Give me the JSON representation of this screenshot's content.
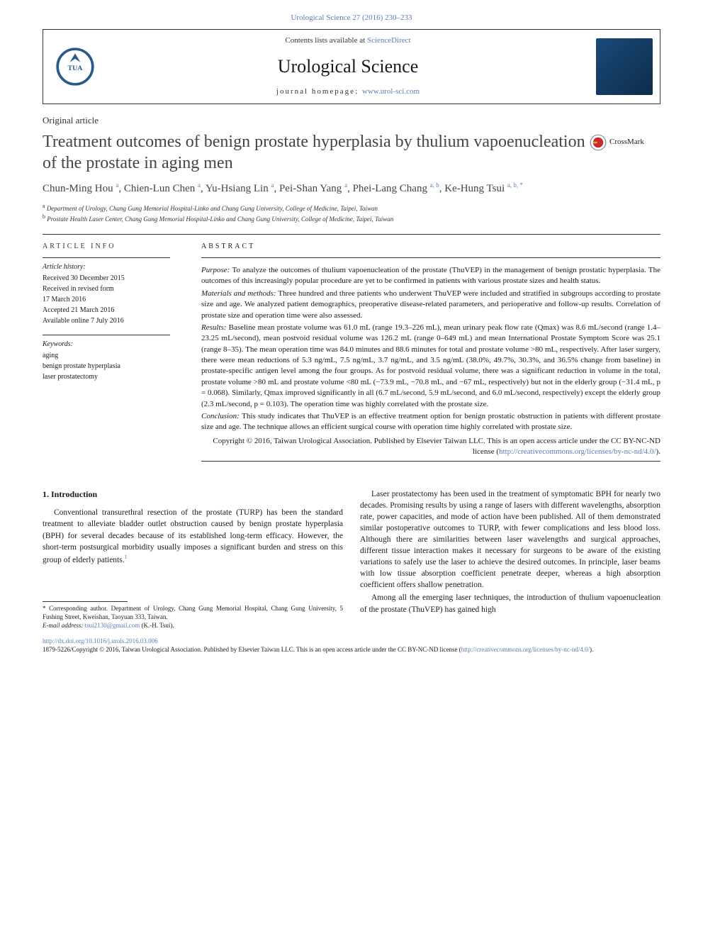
{
  "citation": "Urological Science 27 (2016) 230–233",
  "header": {
    "contents_prefix": "Contents lists available at ",
    "contents_link": "ScienceDirect",
    "journal_name": "Urological Science",
    "homepage_label": "journal homepage: ",
    "homepage_url": "www.urol-sci.com"
  },
  "article_type": "Original article",
  "title": "Treatment outcomes of benign prostate hyperplasia by thulium vapoenucleation of the prostate in aging men",
  "crossmark_label": "CrossMark",
  "authors": [
    {
      "name": "Chun-Ming Hou",
      "sup": "a"
    },
    {
      "name": "Chien-Lun Chen",
      "sup": "a"
    },
    {
      "name": "Yu-Hsiang Lin",
      "sup": "a"
    },
    {
      "name": "Pei-Shan Yang",
      "sup": "a"
    },
    {
      "name": "Phei-Lang Chang",
      "sup": "a, b"
    },
    {
      "name": "Ke-Hung Tsui",
      "sup": "a, b, *"
    }
  ],
  "affiliations": [
    {
      "sup": "a",
      "text": "Department of Urology, Chang Gung Memorial Hospital-Linko and Chang Gung University, College of Medicine, Taipei, Taiwan"
    },
    {
      "sup": "b",
      "text": "Prostate Health Laser Center, Chang Gung Memorial Hospital-Linko and Chang Gung University, College of Medicine, Taipei, Taiwan"
    }
  ],
  "info": {
    "heading": "ARTICLE INFO",
    "history_label": "Article history:",
    "history": [
      "Received 30 December 2015",
      "Received in revised form",
      "17 March 2016",
      "Accepted 21 March 2016",
      "Available online 7 July 2016"
    ],
    "keywords_label": "Keywords:",
    "keywords": [
      "aging",
      "benign prostate hyperplasia",
      "laser prostatectomy"
    ]
  },
  "abstract": {
    "heading": "ABSTRACT",
    "sections": [
      {
        "label": "Purpose:",
        "text": "To analyze the outcomes of thulium vapoenucleation of the prostate (ThuVEP) in the management of benign prostatic hyperplasia. The outcomes of this increasingly popular procedure are yet to be confirmed in patients with various prostate sizes and health status."
      },
      {
        "label": "Materials and methods:",
        "text": "Three hundred and three patients who underwent ThuVEP were included and stratified in subgroups according to prostate size and age. We analyzed patient demographics, preoperative disease-related parameters, and perioperative and follow-up results. Correlation of prostate size and operation time were also assessed."
      },
      {
        "label": "Results:",
        "text": "Baseline mean prostate volume was 61.0 mL (range 19.3–226 mL), mean urinary peak flow rate (Qmax) was 8.6 mL/second (range 1.4–23.25 mL/second), mean postvoid residual volume was 126.2 mL (range 0–649 mL) and mean International Prostate Symptom Score was 25.1 (range 8–35). The mean operation time was 84.0 minutes and 88.6 minutes for total and prostate volume >80 mL, respectively. After laser surgery, there were mean reductions of 5.3 ng/mL, 7.5 ng/mL, 3.7 ng/mL, and 3.5 ng/mL (38.0%, 49.7%, 30.3%, and 36.5% change from baseline) in prostate-specific antigen level among the four groups. As for postvoid residual volume, there was a significant reduction in volume in the total, prostate volume >80 mL and prostate volume <80 mL (−73.9 mL, −70.8 mL, and −67 mL, respectively) but not in the elderly group (−31.4 mL, p = 0.068). Similarly, Qmax improved significantly in all (6.7 mL/second, 5.9 mL/second, and 6.0 mL/second, respectively) except the elderly group (2.3 mL/second, p = 0.103). The operation time was highly correlated with the prostate size."
      },
      {
        "label": "Conclusion:",
        "text": "This study indicates that ThuVEP is an effective treatment option for benign prostatic obstruction in patients with different prostate size and age. The technique allows an efficient surgical course with operation time highly correlated with prostate size."
      }
    ],
    "copyright_prefix": "Copyright © 2016, Taiwan Urological Association. Published by Elsevier Taiwan LLC. This is an open access article under the CC BY-NC-ND license (",
    "copyright_url": "http://creativecommons.org/licenses/by-nc-nd/4.0/",
    "copyright_suffix": ")."
  },
  "intro": {
    "heading": "1. Introduction",
    "col1_para1": "Conventional transurethral resection of the prostate (TURP) has been the standard treatment to alleviate bladder outlet obstruction caused by benign prostate hyperplasia (BPH) for several decades because of its established long-term efficacy. However, the short-term postsurgical morbidity usually imposes a significant burden and stress on this group of elderly patients.",
    "ref1": "1",
    "col2_para1": "Laser prostatectomy has been used in the treatment of symptomatic BPH for nearly two decades. Promising results by using a range of lasers with different wavelengths, absorption rate, power capacities, and mode of action have been published. All of them demonstrated similar postoperative outcomes to TURP, with fewer complications and less blood loss. Although there are similarities between laser wavelengths and surgical approaches, different tissue interaction makes it necessary for surgeons to be aware of the existing variations to safely use the laser to achieve the desired outcomes. In principle, laser beams with low tissue absorption coefficient penetrate deeper, whereas a high absorption coefficient offers shallow penetration.",
    "col2_para2": "Among all the emerging laser techniques, the introduction of thulium vapoenucleation of the prostate (ThuVEP) has gained high"
  },
  "footnote": {
    "corr_label": "* Corresponding author. Department of Urology, Chang Gung Memorial Hospital, Chang Gung University, 5 Fushing Street, Kweishan, Taoyuan 333, Taiwan.",
    "email_label": "E-mail address: ",
    "email": "tsui2130@gmail.com",
    "email_suffix": " (K.-H. Tsui)."
  },
  "bottom": {
    "doi": "http://dx.doi.org/10.1016/j.urols.2016.03.006",
    "issn_line_prefix": "1879-5226/Copyright © 2016, Taiwan Urological Association. Published by Elsevier Taiwan LLC. This is an open access article under the CC BY-NC-ND license (",
    "issn_url": "http://creativecommons.org/licenses/by-nc-nd/4.0/",
    "issn_suffix": ")."
  },
  "colors": {
    "link": "#5b7bb5",
    "text": "#1a1a1a",
    "title": "#444444",
    "rule": "#333333"
  }
}
